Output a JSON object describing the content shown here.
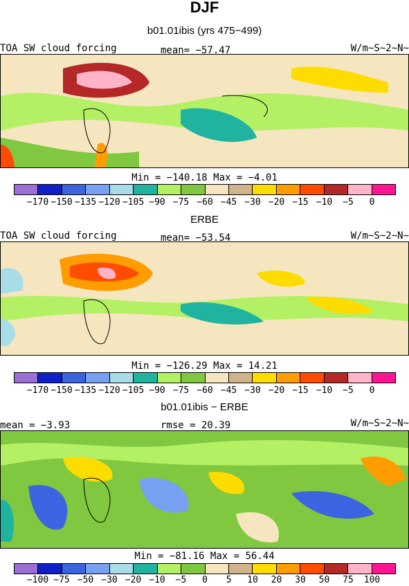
{
  "header": {
    "title": "DJF",
    "subtitle": "b01.01ibis (yrs 475-499)"
  },
  "panels": [
    {
      "id": "model",
      "left_label": "TOA SW cloud forcing",
      "center_label": "mean= -57.47",
      "right_label": "W/m~S~2~N~",
      "minmax": "Min = -140.18 Max =  -4.01",
      "variable": "TOA SW cloud forcing",
      "mean": -57.47,
      "min": -140.18,
      "max": -4.01,
      "units": "W/m~S~2~N~"
    },
    {
      "id": "obs",
      "heading": "ERBE",
      "left_label": "TOA SW cloud forcing",
      "center_label": "mean= -53.54",
      "right_label": "W/m~S~2~N~",
      "minmax": "Min = -126.29 Max =  14.21",
      "variable": "TOA SW cloud forcing",
      "mean": -53.54,
      "min": -126.29,
      "max": 14.21,
      "units": "W/m~S~2~N~"
    },
    {
      "id": "diff",
      "heading": "b01.01ibis - ERBE",
      "left_label": "mean =  -3.93",
      "center_label": "rmse =  20.39",
      "right_label": "W/m~S~2~N~",
      "minmax": "Min = -81.16 Max =  56.44",
      "mean": -3.93,
      "rmse": 20.39,
      "min": -81.16,
      "max": 56.44,
      "units": "W/m~S~2~N~"
    }
  ],
  "colorbars": {
    "absolute": {
      "colors": [
        "#9b6fd6",
        "#1020c8",
        "#3c64e0",
        "#78a0f0",
        "#a8dce6",
        "#20b4a0",
        "#b4f064",
        "#80c840",
        "#f5e6c0",
        "#d2b48c",
        "#ffdc00",
        "#ff9c00",
        "#ff4c00",
        "#b42828",
        "#ffb4c8",
        "#ff1493"
      ],
      "tick_labels": [
        "-170",
        "-150",
        "-135",
        "-120",
        "-105",
        "-90",
        "-75",
        "-60",
        "-45",
        "-30",
        "-20",
        "-15",
        "-10",
        "-5",
        "0"
      ]
    },
    "difference": {
      "colors": [
        "#9b6fd6",
        "#1020c8",
        "#3c64e0",
        "#78a0f0",
        "#a8dce6",
        "#20b4a0",
        "#b4f064",
        "#80c840",
        "#f5e6c0",
        "#d2b48c",
        "#ffdc00",
        "#ff9c00",
        "#ff4c00",
        "#b42828",
        "#ffb4c8",
        "#ff1493"
      ],
      "tick_labels": [
        "-100",
        "-75",
        "-50",
        "-30",
        "-20",
        "-10",
        "-5",
        "0",
        "5",
        "10",
        "20",
        "30",
        "50",
        "75",
        "100"
      ]
    }
  }
}
